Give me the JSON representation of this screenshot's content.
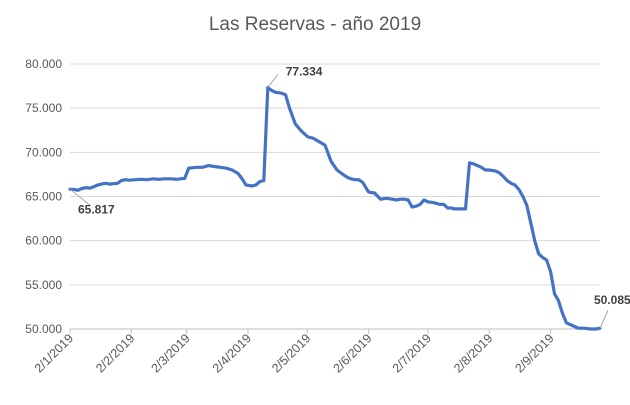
{
  "chart_data": {
    "type": "line",
    "title": "Las Reservas - año 2019",
    "xlabel": "",
    "ylabel": "",
    "ylim": [
      50000,
      80000
    ],
    "y_ticks": [
      50000,
      55000,
      60000,
      65000,
      70000,
      75000,
      80000
    ],
    "y_tick_labels": [
      "50.000",
      "55.000",
      "60.000",
      "65.000",
      "70.000",
      "75.000",
      "80.000"
    ],
    "x_range": [
      "2019-01-02",
      "2019-09-27"
    ],
    "x_ticks": [
      "2019-01-02",
      "2019-02-02",
      "2019-03-02",
      "2019-04-02",
      "2019-05-02",
      "2019-06-02",
      "2019-07-02",
      "2019-08-02",
      "2019-09-02"
    ],
    "x_tick_labels": [
      "2/1/2019",
      "2/2/2019",
      "2/3/2019",
      "2/4/2019",
      "2/5/2019",
      "2/6/2019",
      "2/7/2019",
      "2/8/2019",
      "2/9/2019"
    ],
    "grid": {
      "horizontal": true,
      "vertical": false
    },
    "line_color": "#4472C4",
    "grid_color": "#D9D9D9",
    "axis_color": "#BFBFBF",
    "series": [
      {
        "x": [
          "2019-01-02",
          "2019-01-04",
          "2019-01-06",
          "2019-01-08",
          "2019-01-10",
          "2019-01-12",
          "2019-01-14",
          "2019-01-16",
          "2019-01-18",
          "2019-01-20",
          "2019-01-22",
          "2019-01-24",
          "2019-01-26",
          "2019-01-28",
          "2019-01-30",
          "2019-02-01",
          "2019-02-04",
          "2019-02-07",
          "2019-02-10",
          "2019-02-13",
          "2019-02-16",
          "2019-02-19",
          "2019-02-22",
          "2019-02-25",
          "2019-02-27",
          "2019-03-01",
          "2019-03-03",
          "2019-03-07",
          "2019-03-10",
          "2019-03-13",
          "2019-03-16",
          "2019-03-19",
          "2019-03-22",
          "2019-03-25",
          "2019-03-28",
          "2019-03-30",
          "2019-04-01",
          "2019-04-04",
          "2019-04-06",
          "2019-04-08",
          "2019-04-10",
          "2019-04-12",
          "2019-04-14",
          "2019-04-16",
          "2019-04-19",
          "2019-04-21",
          "2019-04-23",
          "2019-04-26",
          "2019-04-29",
          "2019-05-02",
          "2019-05-03",
          "2019-05-05",
          "2019-05-08",
          "2019-05-11",
          "2019-05-14",
          "2019-05-17",
          "2019-05-20",
          "2019-05-22",
          "2019-05-24",
          "2019-05-26",
          "2019-05-28",
          "2019-05-30",
          "2019-06-02",
          "2019-06-05",
          "2019-06-08",
          "2019-06-11",
          "2019-06-14",
          "2019-06-16",
          "2019-06-18",
          "2019-06-20",
          "2019-06-22",
          "2019-06-24",
          "2019-06-26",
          "2019-06-28",
          "2019-06-30",
          "2019-07-02",
          "2019-07-05",
          "2019-07-08",
          "2019-07-10",
          "2019-07-12",
          "2019-07-14",
          "2019-07-15",
          "2019-07-17",
          "2019-07-19",
          "2019-07-21",
          "2019-07-23",
          "2019-07-25",
          "2019-07-27",
          "2019-07-29",
          "2019-07-31",
          "2019-08-02",
          "2019-08-05",
          "2019-08-07",
          "2019-08-09",
          "2019-08-11",
          "2019-08-13",
          "2019-08-15",
          "2019-08-17",
          "2019-08-19",
          "2019-08-21",
          "2019-08-23",
          "2019-08-25",
          "2019-08-27",
          "2019-08-29",
          "2019-08-31",
          "2019-09-02",
          "2019-09-04",
          "2019-09-06",
          "2019-09-08",
          "2019-09-10",
          "2019-09-13",
          "2019-09-16",
          "2019-09-19",
          "2019-09-22",
          "2019-09-25",
          "2019-09-27"
        ],
        "y": [
          65817,
          65800,
          65700,
          65900,
          66000,
          65950,
          66100,
          66300,
          66400,
          66500,
          66400,
          66450,
          66500,
          66800,
          66900,
          66850,
          66900,
          66950,
          66900,
          67000,
          66950,
          67000,
          67000,
          66950,
          67000,
          67050,
          68200,
          68300,
          68300,
          68500,
          68400,
          68300,
          68200,
          68000,
          67600,
          67000,
          66300,
          66200,
          66300,
          66700,
          66800,
          77334,
          77000,
          76800,
          76700,
          76500,
          75000,
          73200,
          72400,
          71800,
          71700,
          71600,
          71200,
          70800,
          69000,
          68000,
          67500,
          67200,
          67000,
          66900,
          66900,
          66600,
          65500,
          65400,
          64700,
          64800,
          64700,
          64600,
          64700,
          64700,
          64600,
          63800,
          63900,
          64100,
          64600,
          64400,
          64300,
          64100,
          64100,
          63700,
          63700,
          63600,
          63600,
          63600,
          63600,
          68800,
          68700,
          68500,
          68300,
          68000,
          68000,
          67900,
          67700,
          67300,
          66800,
          66500,
          66300,
          65800,
          65000,
          64000,
          62000,
          60000,
          58500,
          58100,
          57800,
          56500,
          54000,
          53200,
          51800,
          50700,
          50400,
          50100,
          50085,
          50000,
          50000,
          50085
        ]
      }
    ],
    "data_labels": [
      {
        "x": "2019-01-02",
        "y": 65817,
        "text": "65.817"
      },
      {
        "x": "2019-04-12",
        "y": 77334,
        "text": "77.334"
      },
      {
        "x": "2019-09-27",
        "y": 50085,
        "text": "50.085"
      }
    ]
  }
}
